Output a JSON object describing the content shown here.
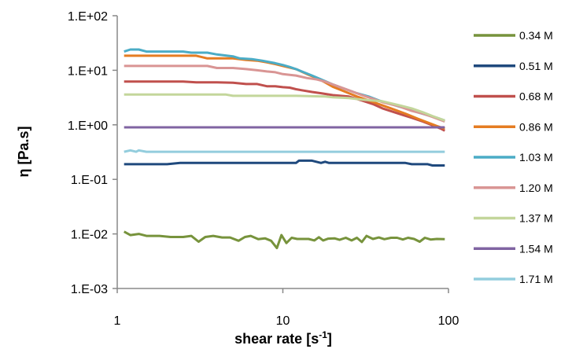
{
  "chart_data": {
    "type": "line",
    "xscale": "log",
    "yscale": "log",
    "xlim": [
      1,
      100
    ],
    "ylim": [
      0.001,
      100
    ],
    "xlabel": "shear rate",
    "xlabel_unit_base": "s",
    "xlabel_unit_exp": "-1",
    "ylabel": "η [Pa.s]",
    "x_ticks": [
      1,
      10,
      100
    ],
    "x_tick_labels": [
      "1",
      "10",
      "100"
    ],
    "y_ticks": [
      0.001,
      0.01,
      0.1,
      1,
      10,
      100
    ],
    "y_tick_labels": [
      "1.E-03",
      "1.E-02",
      "1.E-01",
      "1.E+00",
      "1.E+01",
      "1.E+02"
    ],
    "grid": false,
    "legend_position": "right",
    "series": [
      {
        "name": "0.34 M",
        "color": "#77933c",
        "points": [
          [
            1.1,
            0.011
          ],
          [
            1.2,
            0.0095
          ],
          [
            1.35,
            0.01
          ],
          [
            1.5,
            0.0092
          ],
          [
            1.8,
            0.0092
          ],
          [
            2.1,
            0.0088
          ],
          [
            2.5,
            0.0088
          ],
          [
            2.8,
            0.0092
          ],
          [
            3.1,
            0.0072
          ],
          [
            3.4,
            0.0088
          ],
          [
            3.8,
            0.0092
          ],
          [
            4.3,
            0.0086
          ],
          [
            4.8,
            0.0086
          ],
          [
            5.4,
            0.0075
          ],
          [
            5.9,
            0.0088
          ],
          [
            6.4,
            0.0092
          ],
          [
            7.1,
            0.008
          ],
          [
            7.8,
            0.0083
          ],
          [
            8.5,
            0.0075
          ],
          [
            9.2,
            0.0055
          ],
          [
            9.8,
            0.0095
          ],
          [
            10.5,
            0.0068
          ],
          [
            11.3,
            0.0085
          ],
          [
            12.2,
            0.0081
          ],
          [
            13.2,
            0.0081
          ],
          [
            14.3,
            0.0081
          ],
          [
            15.5,
            0.0076
          ],
          [
            16.5,
            0.0087
          ],
          [
            17.5,
            0.0076
          ],
          [
            18.8,
            0.0082
          ],
          [
            20.5,
            0.0083
          ],
          [
            22,
            0.0078
          ],
          [
            24,
            0.0085
          ],
          [
            26,
            0.0076
          ],
          [
            28,
            0.0085
          ],
          [
            30,
            0.0071
          ],
          [
            32,
            0.0092
          ],
          [
            35,
            0.0081
          ],
          [
            38,
            0.0086
          ],
          [
            41,
            0.008
          ],
          [
            45,
            0.0085
          ],
          [
            49,
            0.0085
          ],
          [
            53,
            0.0079
          ],
          [
            57,
            0.0085
          ],
          [
            62,
            0.0081
          ],
          [
            67,
            0.0072
          ],
          [
            72,
            0.0085
          ],
          [
            78,
            0.0079
          ],
          [
            85,
            0.0081
          ],
          [
            95,
            0.008
          ]
        ]
      },
      {
        "name": "0.51 M",
        "color": "#1f497d",
        "points": [
          [
            1.1,
            0.19
          ],
          [
            2,
            0.19
          ],
          [
            2.4,
            0.2
          ],
          [
            5,
            0.2
          ],
          [
            10,
            0.2
          ],
          [
            12,
            0.2
          ],
          [
            12.5,
            0.22
          ],
          [
            15,
            0.22
          ],
          [
            17,
            0.2
          ],
          [
            18,
            0.21
          ],
          [
            19,
            0.2
          ],
          [
            30,
            0.2
          ],
          [
            55,
            0.2
          ],
          [
            60,
            0.19
          ],
          [
            75,
            0.19
          ],
          [
            80,
            0.18
          ],
          [
            95,
            0.18
          ]
        ]
      },
      {
        "name": "0.68 M",
        "color": "#c0504d",
        "points": [
          [
            1.1,
            6.2
          ],
          [
            2.5,
            6.2
          ],
          [
            3,
            6.0
          ],
          [
            4,
            6.0
          ],
          [
            5,
            5.9
          ],
          [
            6,
            5.6
          ],
          [
            7,
            5.6
          ],
          [
            8,
            5.1
          ],
          [
            9,
            5.1
          ],
          [
            10,
            4.9
          ],
          [
            11,
            4.8
          ],
          [
            12,
            4.5
          ],
          [
            13,
            4.3
          ],
          [
            15,
            4.0
          ],
          [
            17,
            3.8
          ],
          [
            20,
            3.5
          ],
          [
            25,
            3.3
          ],
          [
            30,
            2.8
          ],
          [
            35,
            2.4
          ],
          [
            40,
            2.0
          ],
          [
            50,
            1.6
          ],
          [
            60,
            1.35
          ],
          [
            70,
            1.15
          ],
          [
            80,
            0.98
          ],
          [
            90,
            0.85
          ],
          [
            95,
            0.78
          ]
        ]
      },
      {
        "name": "0.86 M",
        "color": "#e57c22",
        "points": [
          [
            1.1,
            18.5
          ],
          [
            3,
            18.5
          ],
          [
            3.5,
            16.5
          ],
          [
            5,
            16.5
          ],
          [
            6,
            15.5
          ],
          [
            7,
            15
          ],
          [
            8,
            14
          ],
          [
            9,
            13
          ],
          [
            10,
            12
          ],
          [
            12,
            10.5
          ],
          [
            14,
            8.5
          ],
          [
            16,
            7.2
          ],
          [
            18,
            6
          ],
          [
            20,
            5
          ],
          [
            24,
            4
          ],
          [
            28,
            3.3
          ],
          [
            33,
            2.8
          ],
          [
            38,
            2.4
          ],
          [
            45,
            2.0
          ],
          [
            55,
            1.6
          ],
          [
            65,
            1.3
          ],
          [
            75,
            1.1
          ],
          [
            85,
            0.95
          ],
          [
            95,
            0.85
          ]
        ]
      },
      {
        "name": "1.03 M",
        "color": "#4bacc6",
        "points": [
          [
            1.1,
            22
          ],
          [
            1.2,
            24
          ],
          [
            1.35,
            24
          ],
          [
            1.5,
            22
          ],
          [
            2,
            22
          ],
          [
            2.5,
            22
          ],
          [
            2.8,
            21
          ],
          [
            3.5,
            21
          ],
          [
            4,
            19.5
          ],
          [
            5,
            18
          ],
          [
            5.5,
            16.5
          ],
          [
            6.5,
            16
          ],
          [
            7.5,
            15
          ],
          [
            9,
            13.5
          ],
          [
            10,
            12.5
          ],
          [
            11,
            11.5
          ],
          [
            12,
            10.5
          ],
          [
            13,
            9.5
          ],
          [
            15,
            8
          ],
          [
            17,
            6.8
          ],
          [
            20,
            5.5
          ],
          [
            24,
            4.5
          ],
          [
            28,
            3.8
          ],
          [
            33,
            3.3
          ],
          [
            38,
            2.8
          ],
          [
            45,
            2.4
          ],
          [
            55,
            2.0
          ],
          [
            65,
            1.7
          ],
          [
            75,
            1.5
          ],
          [
            85,
            1.35
          ],
          [
            95,
            1.2
          ]
        ]
      },
      {
        "name": "1.20 M",
        "color": "#d99594",
        "points": [
          [
            1.1,
            12
          ],
          [
            3,
            12
          ],
          [
            3.5,
            12
          ],
          [
            4,
            11
          ],
          [
            5,
            11
          ],
          [
            6,
            10.5
          ],
          [
            7,
            10
          ],
          [
            8,
            9.5
          ],
          [
            9,
            9.2
          ],
          [
            10,
            8.5
          ],
          [
            12,
            8
          ],
          [
            14,
            7.2
          ],
          [
            16,
            6.8
          ],
          [
            18,
            6.2
          ],
          [
            20,
            5.5
          ],
          [
            25,
            4.3
          ],
          [
            30,
            3.5
          ],
          [
            35,
            3.0
          ],
          [
            40,
            2.6
          ],
          [
            50,
            2.2
          ],
          [
            60,
            1.8
          ],
          [
            70,
            1.6
          ],
          [
            80,
            1.4
          ],
          [
            95,
            1.15
          ]
        ]
      },
      {
        "name": "1.37 M",
        "color": "#c3d69b",
        "points": [
          [
            1.1,
            3.6
          ],
          [
            4.5,
            3.6
          ],
          [
            5,
            3.4
          ],
          [
            8,
            3.4
          ],
          [
            12,
            3.4
          ],
          [
            18,
            3.3
          ],
          [
            20,
            3.2
          ],
          [
            25,
            3.1
          ],
          [
            30,
            2.9
          ],
          [
            40,
            2.7
          ],
          [
            50,
            2.3
          ],
          [
            60,
            2.0
          ],
          [
            70,
            1.7
          ],
          [
            80,
            1.45
          ],
          [
            95,
            1.2
          ]
        ]
      },
      {
        "name": "1.54 M",
        "color": "#8064a2",
        "points": [
          [
            1.1,
            0.9
          ],
          [
            10,
            0.9
          ],
          [
            50,
            0.9
          ],
          [
            95,
            0.9
          ]
        ]
      },
      {
        "name": "1.71 M",
        "color": "#93cddd",
        "points": [
          [
            1.1,
            0.32
          ],
          [
            1.2,
            0.34
          ],
          [
            1.3,
            0.32
          ],
          [
            1.35,
            0.34
          ],
          [
            1.5,
            0.32
          ],
          [
            5,
            0.32
          ],
          [
            20,
            0.32
          ],
          [
            95,
            0.32
          ]
        ]
      }
    ]
  }
}
